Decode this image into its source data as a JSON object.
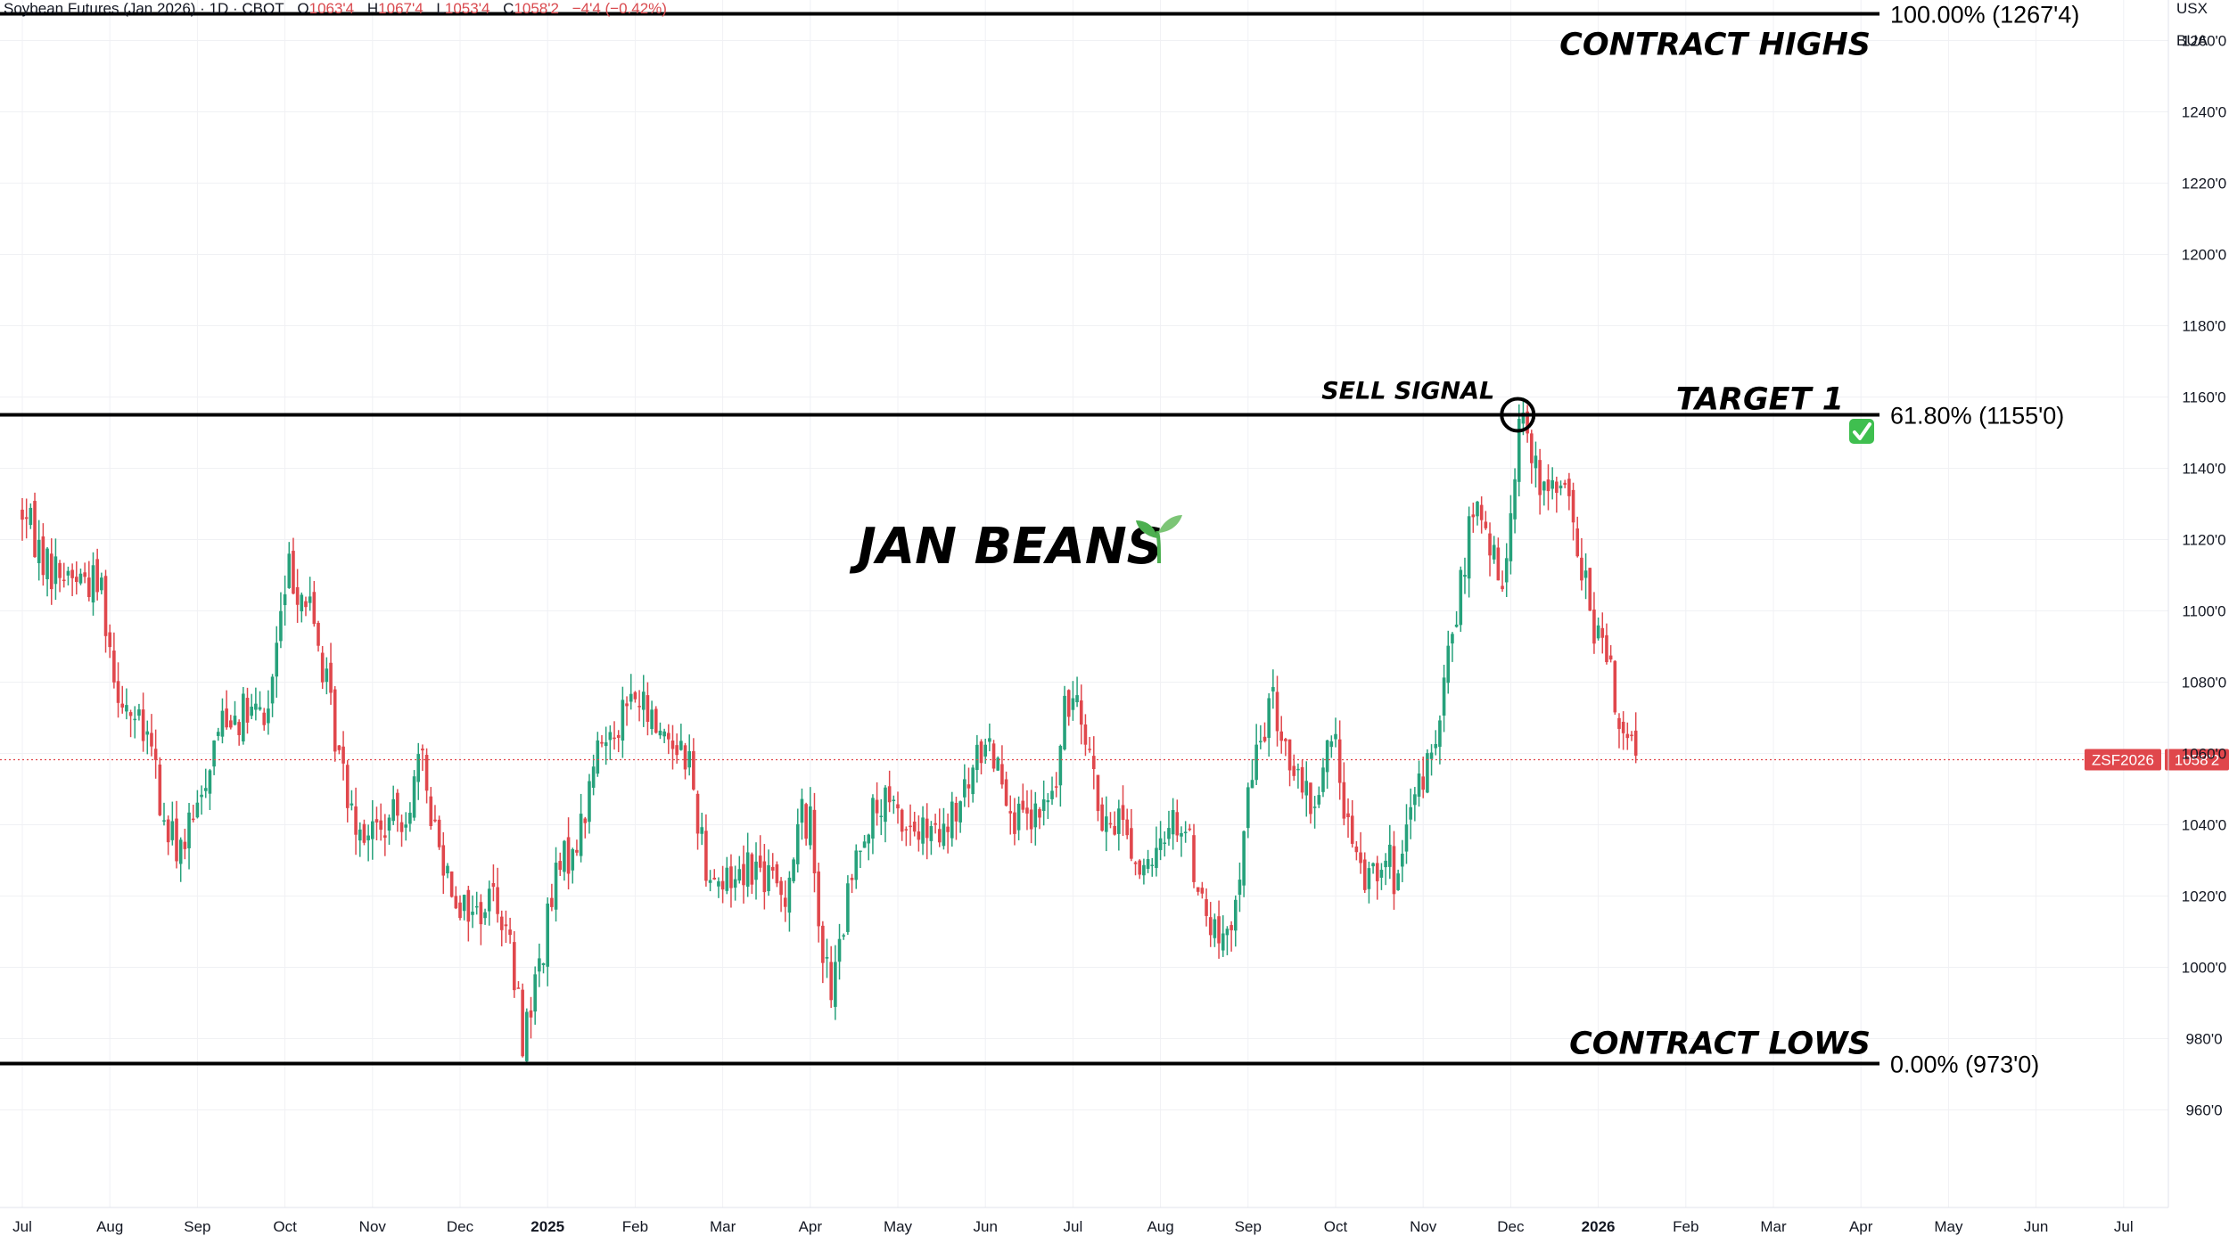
{
  "header": {
    "symbol": "Soybean Futures (Jan 2026) · 1D · CBOT",
    "ohlc": [
      {
        "label": "O",
        "value": "1063'4"
      },
      {
        "label": "H",
        "value": "1067'4"
      },
      {
        "label": "L",
        "value": "1053'4"
      },
      {
        "label": "C",
        "value": "1058'2"
      }
    ],
    "change": "−4'4 (−0.42%)",
    "currency": "USX",
    "unit": "BUA"
  },
  "colors": {
    "up": "#26a17b",
    "down": "#e0474c",
    "level_line": "#000000",
    "price_line": "#e0474c",
    "grid": "#f0f1f4",
    "check": "#3fbf4f",
    "sprout": "#4caf50"
  },
  "chart_data": {
    "type": "candlestick",
    "symbol_tag": "ZSF2026",
    "last_price": 1058.25,
    "last_price_label": "1058'2",
    "ylim": [
      940,
      1271
    ],
    "y_ticks": [
      {
        "value": 960,
        "label": "960'0"
      },
      {
        "value": 980,
        "label": "980'0"
      },
      {
        "value": 1000,
        "label": "1000'0"
      },
      {
        "value": 1020,
        "label": "1020'0"
      },
      {
        "value": 1040,
        "label": "1040'0"
      },
      {
        "value": 1060,
        "label": "1060'0"
      },
      {
        "value": 1080,
        "label": "1080'0"
      },
      {
        "value": 1100,
        "label": "1100'0"
      },
      {
        "value": 1120,
        "label": "1120'0"
      },
      {
        "value": 1140,
        "label": "1140'0"
      },
      {
        "value": 1160,
        "label": "1160'0"
      },
      {
        "value": 1180,
        "label": "1180'0"
      },
      {
        "value": 1200,
        "label": "1200'0"
      },
      {
        "value": 1220,
        "label": "1220'0"
      },
      {
        "value": 1240,
        "label": "1240'0"
      },
      {
        "value": 1260,
        "label": "1260'0"
      }
    ],
    "x_ticks": [
      {
        "month": 0,
        "label": "Jul",
        "bold": false
      },
      {
        "month": 1,
        "label": "Aug",
        "bold": false
      },
      {
        "month": 2,
        "label": "Sep",
        "bold": false
      },
      {
        "month": 3,
        "label": "Oct",
        "bold": false
      },
      {
        "month": 4,
        "label": "Nov",
        "bold": false
      },
      {
        "month": 5,
        "label": "Dec",
        "bold": false
      },
      {
        "month": 6,
        "label": "2025",
        "bold": true
      },
      {
        "month": 7,
        "label": "Feb",
        "bold": false
      },
      {
        "month": 8,
        "label": "Mar",
        "bold": false
      },
      {
        "month": 9,
        "label": "Apr",
        "bold": false
      },
      {
        "month": 10,
        "label": "May",
        "bold": false
      },
      {
        "month": 11,
        "label": "Jun",
        "bold": false
      },
      {
        "month": 12,
        "label": "Jul",
        "bold": false
      },
      {
        "month": 13,
        "label": "Aug",
        "bold": false
      },
      {
        "month": 14,
        "label": "Sep",
        "bold": false
      },
      {
        "month": 15,
        "label": "Oct",
        "bold": false
      },
      {
        "month": 16,
        "label": "Nov",
        "bold": false
      },
      {
        "month": 17,
        "label": "Dec",
        "bold": false
      },
      {
        "month": 18,
        "label": "2026",
        "bold": true
      },
      {
        "month": 19,
        "label": "Feb",
        "bold": false
      },
      {
        "month": 20,
        "label": "Mar",
        "bold": false
      },
      {
        "month": 21,
        "label": "Apr",
        "bold": false
      },
      {
        "month": 22,
        "label": "May",
        "bold": false
      },
      {
        "month": 23,
        "label": "Jun",
        "bold": false
      },
      {
        "month": 24,
        "label": "Jul",
        "bold": false
      }
    ],
    "series_path": [
      [
        0.0,
        1128
      ],
      [
        0.3,
        1112
      ],
      [
        0.6,
        1110
      ],
      [
        0.9,
        1108
      ],
      [
        1.05,
        1082
      ],
      [
        1.3,
        1068
      ],
      [
        1.5,
        1060
      ],
      [
        1.6,
        1040
      ],
      [
        1.8,
        1033
      ],
      [
        2.0,
        1043
      ],
      [
        2.1,
        1055
      ],
      [
        2.3,
        1072
      ],
      [
        2.5,
        1071
      ],
      [
        2.8,
        1070
      ],
      [
        2.9,
        1090
      ],
      [
        3.05,
        1112
      ],
      [
        3.3,
        1100
      ],
      [
        3.5,
        1075
      ],
      [
        3.65,
        1055
      ],
      [
        3.85,
        1040
      ],
      [
        4.1,
        1038
      ],
      [
        4.4,
        1045
      ],
      [
        4.55,
        1058
      ],
      [
        4.75,
        1035
      ],
      [
        5.0,
        1018
      ],
      [
        5.2,
        1015
      ],
      [
        5.4,
        1022
      ],
      [
        5.55,
        1008
      ],
      [
        5.72,
        980
      ],
      [
        5.9,
        1000
      ],
      [
        6.1,
        1025
      ],
      [
        6.4,
        1040
      ],
      [
        6.55,
        1060
      ],
      [
        6.8,
        1070
      ],
      [
        7.0,
        1076
      ],
      [
        7.15,
        1070
      ],
      [
        7.4,
        1065
      ],
      [
        7.6,
        1060
      ],
      [
        7.8,
        1030
      ],
      [
        8.0,
        1023
      ],
      [
        8.3,
        1030
      ],
      [
        8.7,
        1020
      ],
      [
        8.9,
        1043
      ],
      [
        9.0,
        1040
      ],
      [
        9.15,
        1003
      ],
      [
        9.25,
        992
      ],
      [
        9.4,
        1015
      ],
      [
        9.6,
        1040
      ],
      [
        9.85,
        1045
      ],
      [
        10.2,
        1038
      ],
      [
        10.5,
        1035
      ],
      [
        10.8,
        1050
      ],
      [
        11.0,
        1065
      ],
      [
        11.2,
        1055
      ],
      [
        11.35,
        1040
      ],
      [
        11.55,
        1040
      ],
      [
        11.8,
        1050
      ],
      [
        11.9,
        1070
      ],
      [
        12.05,
        1080
      ],
      [
        12.2,
        1060
      ],
      [
        12.35,
        1035
      ],
      [
        12.55,
        1045
      ],
      [
        12.7,
        1030
      ],
      [
        12.9,
        1025
      ],
      [
        13.1,
        1043
      ],
      [
        13.3,
        1038
      ],
      [
        13.5,
        1015
      ],
      [
        13.65,
        1008
      ],
      [
        13.8,
        1005
      ],
      [
        13.95,
        1040
      ],
      [
        14.1,
        1060
      ],
      [
        14.25,
        1075
      ],
      [
        14.4,
        1065
      ],
      [
        14.6,
        1048
      ],
      [
        14.75,
        1045
      ],
      [
        14.95,
        1065
      ],
      [
        15.05,
        1055
      ],
      [
        15.2,
        1030
      ],
      [
        15.4,
        1025
      ],
      [
        15.55,
        1035
      ],
      [
        15.7,
        1022
      ],
      [
        15.85,
        1040
      ],
      [
        16.0,
        1055
      ],
      [
        16.15,
        1060
      ],
      [
        16.3,
        1090
      ],
      [
        16.45,
        1110
      ],
      [
        16.58,
        1130
      ],
      [
        16.75,
        1118
      ],
      [
        16.9,
        1105
      ],
      [
        17.0,
        1130
      ],
      [
        17.12,
        1160
      ],
      [
        17.25,
        1140
      ],
      [
        17.4,
        1130
      ],
      [
        17.55,
        1140
      ],
      [
        17.75,
        1120
      ],
      [
        17.9,
        1100
      ],
      [
        18.05,
        1090
      ],
      [
        18.2,
        1075
      ],
      [
        18.35,
        1060
      ],
      [
        18.45,
        1058
      ]
    ],
    "levels": [
      {
        "price": 1267.5,
        "label": "100.00% (1267'4)",
        "name": "CONTRACT HIGHS"
      },
      {
        "price": 1155.0,
        "label": "61.80% (1155'0)",
        "name": "TARGET 1"
      },
      {
        "price": 973.0,
        "label": "0.00% (973'0)",
        "name": "CONTRACT LOWS"
      }
    ],
    "annotations": {
      "title": "JAN BEANS",
      "sell_signal": {
        "label": "SELL SIGNAL",
        "month": 17.08,
        "price": 1155
      }
    }
  }
}
